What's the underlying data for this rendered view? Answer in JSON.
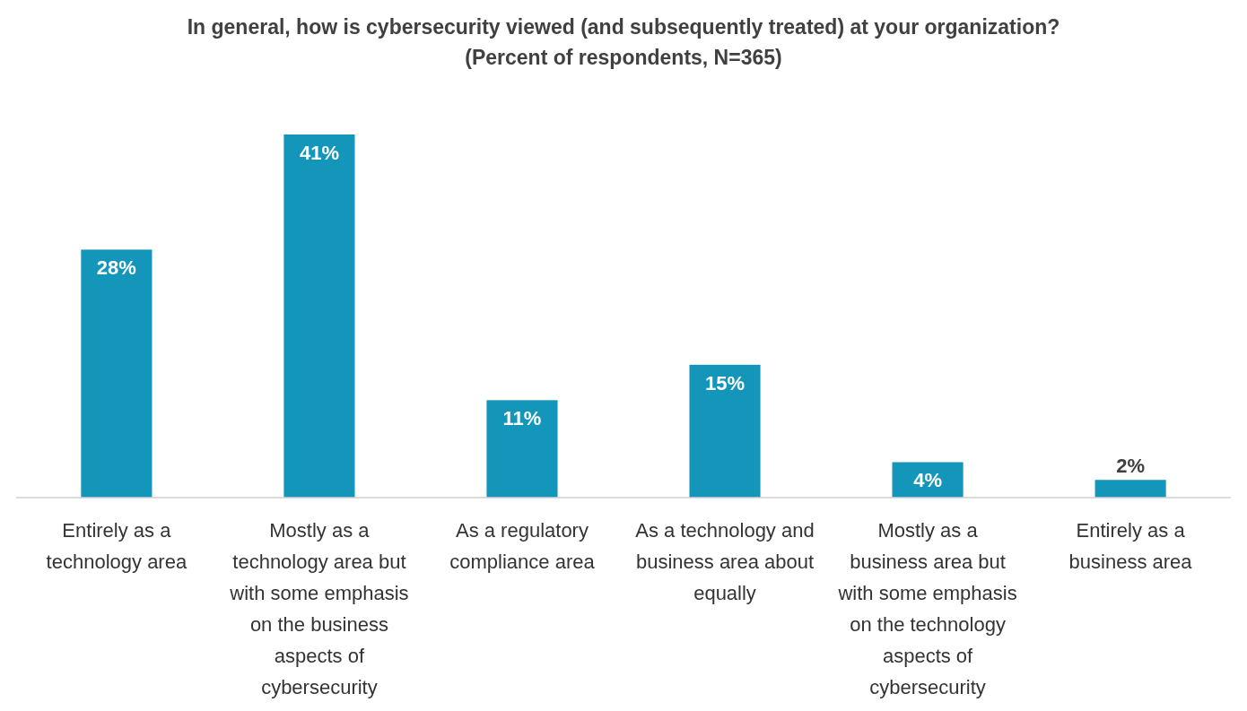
{
  "chart_data": {
    "type": "bar",
    "title": "In general, how is cybersecurity viewed (and subsequently treated) at your organization?",
    "subtitle": "(Percent of respondents, N=365)",
    "categories": [
      "Entirely as a technology area",
      "Mostly as a technology area but with some emphasis on the business aspects of cybersecurity",
      "As a regulatory compliance area",
      "As a technology and business area about equally",
      "Mostly as a business area but with some emphasis on the technology aspects of cybersecurity",
      "Entirely as a business area"
    ],
    "values": [
      28,
      41,
      11,
      15,
      4,
      2
    ],
    "color": "#1496bb",
    "data_labels": true,
    "value_labels": [
      "28%",
      "41%",
      "11%",
      "15%",
      "4%",
      "2%"
    ]
  }
}
